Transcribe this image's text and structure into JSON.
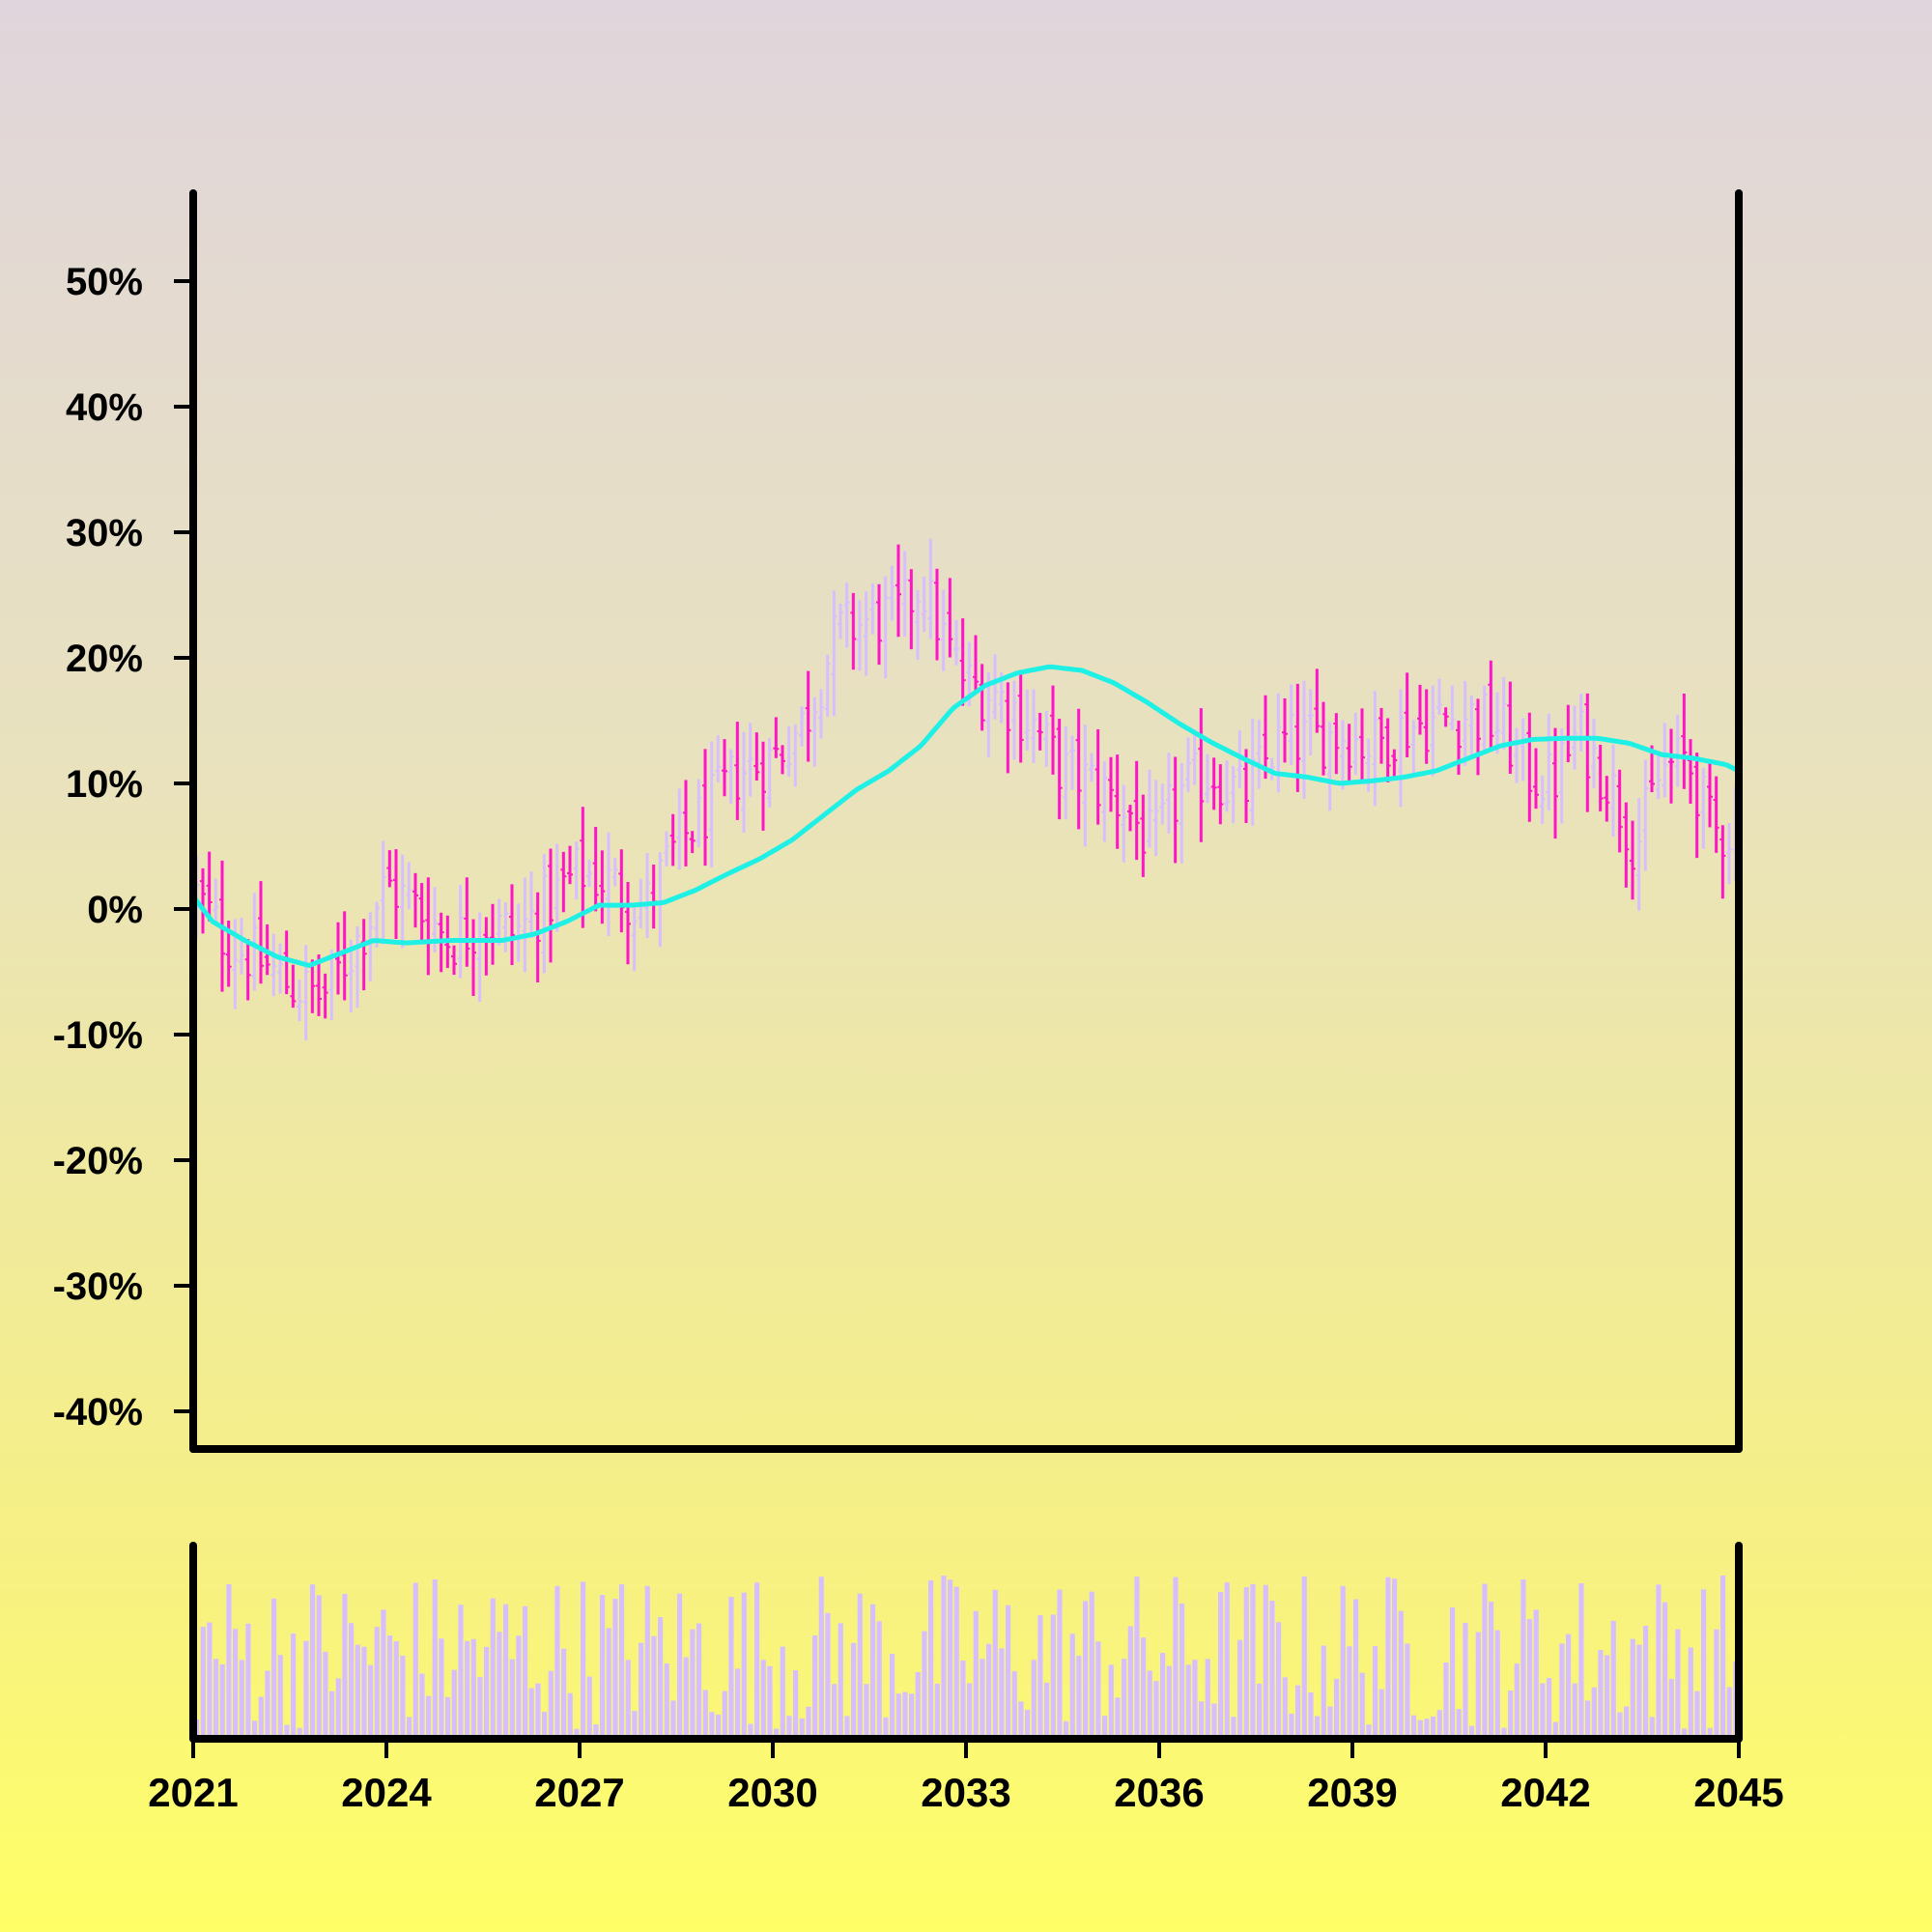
{
  "chart_data": {
    "type": "ohlc",
    "title": "",
    "xlabel": "",
    "ylabel": "",
    "x_axis": {
      "ticks": [
        "2021",
        "2024",
        "2027",
        "2030",
        "2033",
        "2036",
        "2039",
        "2042",
        "2045"
      ],
      "range": [
        2021,
        2045
      ]
    },
    "y_axis": {
      "ticks": [
        "-40%",
        "-30%",
        "-20%",
        "-10%",
        "0%",
        "10%",
        "20%",
        "30%",
        "40%",
        "50%"
      ],
      "range_percent": [
        -43,
        57
      ]
    },
    "price_series": {
      "name": "",
      "close_percent": [
        [
          2021.0,
          1.5
        ],
        [
          2021.5,
          -2.5
        ],
        [
          2022.0,
          -4.0
        ],
        [
          2022.5,
          -6.0
        ],
        [
          2023.0,
          -7.0
        ],
        [
          2023.5,
          -3.0
        ],
        [
          2024.0,
          2.0
        ],
        [
          2024.5,
          0.0
        ],
        [
          2025.0,
          -2.5
        ],
        [
          2025.5,
          -1.0
        ],
        [
          2026.0,
          -2.0
        ],
        [
          2026.5,
          0.5
        ],
        [
          2027.0,
          3.0
        ],
        [
          2027.5,
          2.0
        ],
        [
          2028.0,
          0.0
        ],
        [
          2028.5,
          5.0
        ],
        [
          2029.0,
          8.0
        ],
        [
          2029.5,
          11.0
        ],
        [
          2030.0,
          12.0
        ],
        [
          2030.5,
          15.0
        ],
        [
          2031.0,
          22.0
        ],
        [
          2031.5,
          23.0
        ],
        [
          2032.0,
          23.5
        ],
        [
          2032.3,
          26.0
        ],
        [
          2032.7,
          21.0
        ],
        [
          2033.0,
          18.0
        ],
        [
          2033.5,
          17.0
        ],
        [
          2034.0,
          15.0
        ],
        [
          2034.5,
          11.0
        ],
        [
          2035.0,
          10.0
        ],
        [
          2035.5,
          8.0
        ],
        [
          2035.9,
          5.0
        ],
        [
          2036.3,
          9.0
        ],
        [
          2036.8,
          11.0
        ],
        [
          2037.3,
          9.0
        ],
        [
          2037.8,
          13.0
        ],
        [
          2038.3,
          13.5
        ],
        [
          2038.8,
          14.0
        ],
        [
          2039.3,
          13.0
        ],
        [
          2039.8,
          14.5
        ],
        [
          2040.3,
          15.0
        ],
        [
          2040.8,
          15.5
        ],
        [
          2041.3,
          14.5
        ],
        [
          2041.7,
          11.0
        ],
        [
          2042.1,
          10.0
        ],
        [
          2042.5,
          14.0
        ],
        [
          2043.0,
          10.0
        ],
        [
          2043.4,
          5.0
        ],
        [
          2043.8,
          11.0
        ],
        [
          2044.2,
          12.0
        ],
        [
          2044.6,
          6.0
        ],
        [
          2045.0,
          6.5
        ]
      ],
      "up_color": "#d7bfff",
      "down_color": "#ff14c8"
    },
    "moving_average": {
      "name": "",
      "color": "#1ef0e6",
      "points": [
        [
          2021.0,
          1.0
        ],
        [
          2021.3,
          -1.0
        ],
        [
          2021.8,
          -2.5
        ],
        [
          2022.3,
          -3.8
        ],
        [
          2022.8,
          -4.5
        ],
        [
          2023.3,
          -3.5
        ],
        [
          2023.8,
          -2.5
        ],
        [
          2024.3,
          -2.7
        ],
        [
          2025.0,
          -2.5
        ],
        [
          2025.8,
          -2.5
        ],
        [
          2026.3,
          -2.0
        ],
        [
          2026.8,
          -1.0
        ],
        [
          2027.3,
          0.3
        ],
        [
          2027.8,
          0.3
        ],
        [
          2028.3,
          0.5
        ],
        [
          2028.8,
          1.5
        ],
        [
          2029.3,
          2.8
        ],
        [
          2029.8,
          4.0
        ],
        [
          2030.3,
          5.5
        ],
        [
          2030.8,
          7.5
        ],
        [
          2031.3,
          9.5
        ],
        [
          2031.8,
          11.0
        ],
        [
          2032.3,
          13.0
        ],
        [
          2032.8,
          16.0
        ],
        [
          2033.3,
          17.8
        ],
        [
          2033.8,
          18.8
        ],
        [
          2034.3,
          19.3
        ],
        [
          2034.8,
          19.0
        ],
        [
          2035.3,
          18.0
        ],
        [
          2035.8,
          16.5
        ],
        [
          2036.3,
          14.8
        ],
        [
          2036.8,
          13.3
        ],
        [
          2037.3,
          12.0
        ],
        [
          2037.8,
          10.8
        ],
        [
          2038.3,
          10.5
        ],
        [
          2038.8,
          10.0
        ],
        [
          2039.3,
          10.2
        ],
        [
          2039.8,
          10.5
        ],
        [
          2040.3,
          11.0
        ],
        [
          2040.8,
          12.0
        ],
        [
          2041.3,
          13.0
        ],
        [
          2041.8,
          13.5
        ],
        [
          2042.3,
          13.6
        ],
        [
          2042.8,
          13.6
        ],
        [
          2043.3,
          13.2
        ],
        [
          2043.8,
          12.3
        ],
        [
          2044.3,
          12.0
        ],
        [
          2044.8,
          11.5
        ],
        [
          2045.0,
          11.0
        ]
      ]
    },
    "volume": {
      "color": "#d7bfff",
      "y_axis_labels": false
    },
    "grid": false,
    "legend": "none"
  }
}
